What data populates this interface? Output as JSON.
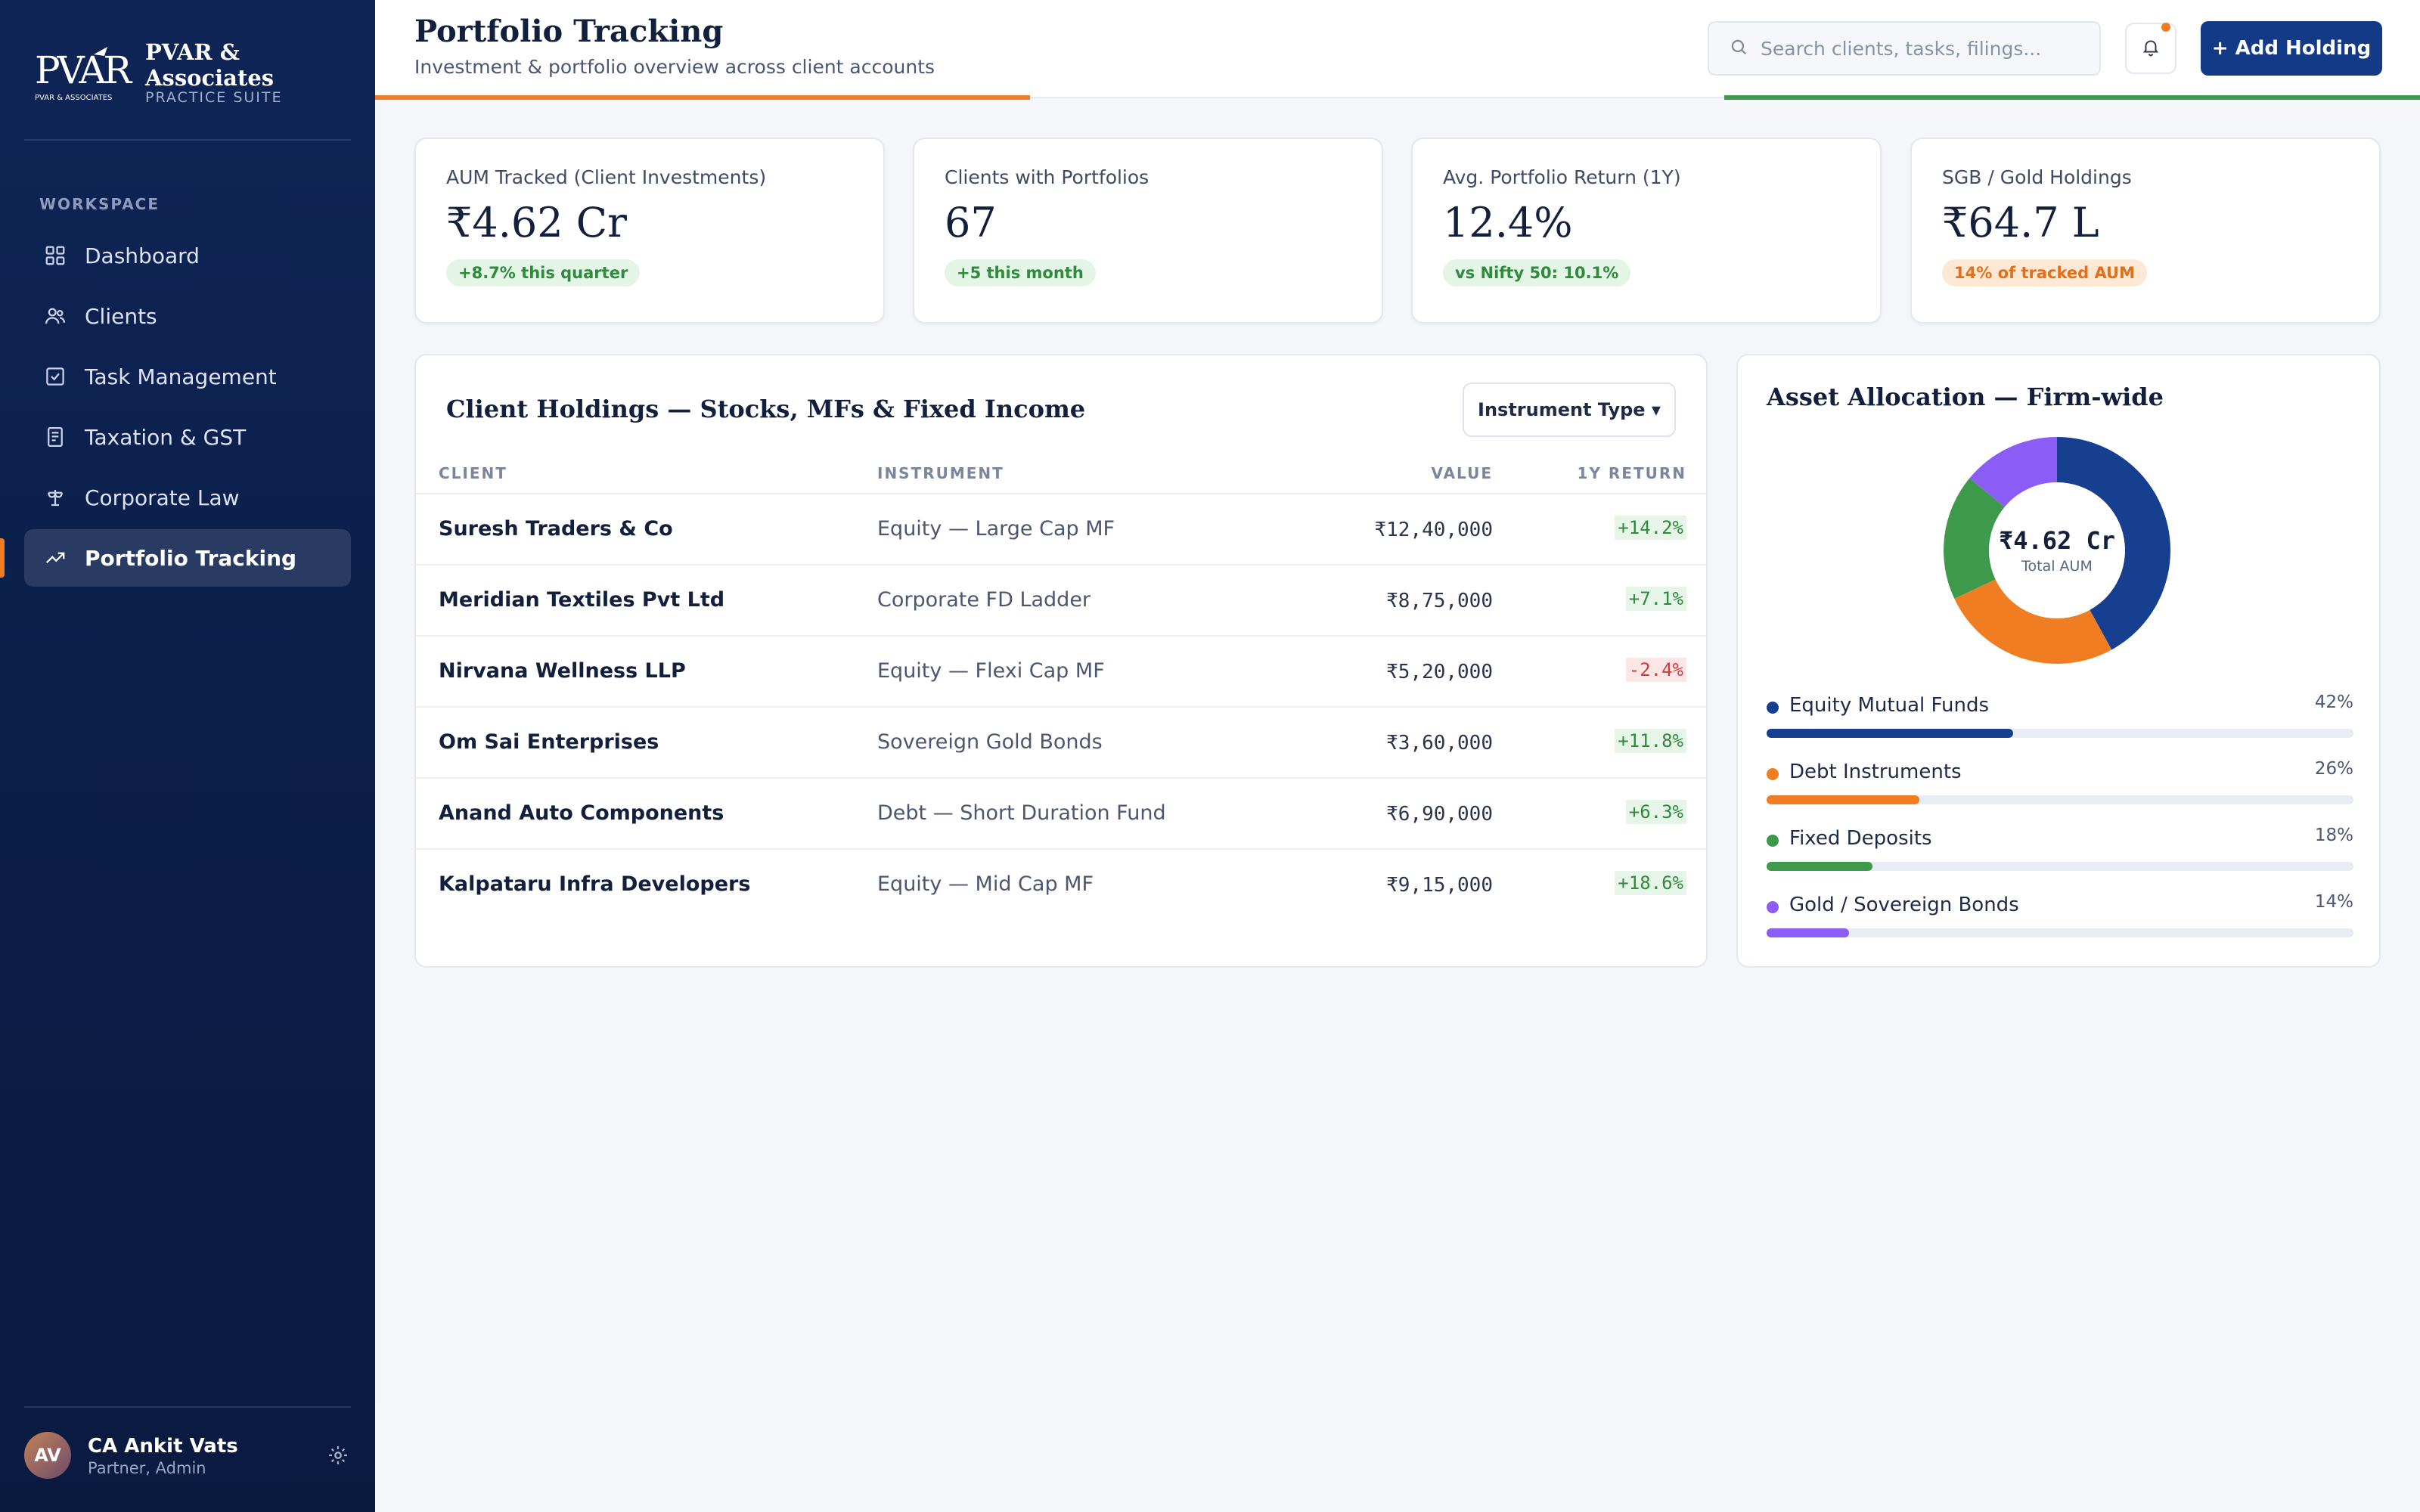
{
  "brand": {
    "logo_text": "PVAR",
    "logo_subtext": "PVAR & ASSOCIATES",
    "name_line1": "PVAR &",
    "name_line2": "Associates",
    "suite": "PRACTICE SUITE"
  },
  "sidebar": {
    "section_label": "WORKSPACE",
    "items": [
      {
        "label": "Dashboard",
        "icon": "grid-icon"
      },
      {
        "label": "Clients",
        "icon": "users-icon"
      },
      {
        "label": "Task Management",
        "icon": "checkbox-icon"
      },
      {
        "label": "Taxation & GST",
        "icon": "receipt-icon"
      },
      {
        "label": "Corporate Law",
        "icon": "scales-icon"
      },
      {
        "label": "Portfolio Tracking",
        "icon": "trend-up-icon",
        "active": true
      }
    ],
    "user": {
      "initials": "AV",
      "name": "CA Ankit Vats",
      "role": "Partner, Admin"
    }
  },
  "header": {
    "title": "Portfolio Tracking",
    "subtitle": "Investment & portfolio overview across client accounts",
    "search_placeholder": "Search clients, tasks, filings...",
    "add_button": "+ Add Holding"
  },
  "stats": [
    {
      "label": "AUM Tracked (Client Investments)",
      "value": "₹4.62 Cr",
      "badge": "+8.7% this quarter",
      "badge_color": "green"
    },
    {
      "label": "Clients with Portfolios",
      "value": "67",
      "badge": "+5 this month",
      "badge_color": "green"
    },
    {
      "label": "Avg. Portfolio Return (1Y)",
      "value": "12.4%",
      "badge": "vs Nifty 50: 10.1%",
      "badge_color": "green"
    },
    {
      "label": "SGB / Gold Holdings",
      "value": "₹64.7 L",
      "badge": "14% of tracked AUM",
      "badge_color": "orange"
    }
  ],
  "holdings": {
    "title": "Client Holdings — Stocks, MFs & Fixed Income",
    "filter_button": "Instrument Type ▾",
    "columns": {
      "client": "CLIENT",
      "instrument": "INSTRUMENT",
      "value": "VALUE",
      "return": "1Y RETURN"
    },
    "rows": [
      {
        "client": "Suresh Traders & Co",
        "instrument": "Equity — Large Cap MF",
        "value": "₹12,40,000",
        "return": "+14.2%",
        "positive": true
      },
      {
        "client": "Meridian Textiles Pvt Ltd",
        "instrument": "Corporate FD Ladder",
        "value": "₹8,75,000",
        "return": "+7.1%",
        "positive": true
      },
      {
        "client": "Nirvana Wellness LLP",
        "instrument": "Equity — Flexi Cap MF",
        "value": "₹5,20,000",
        "return": "-2.4%",
        "positive": false
      },
      {
        "client": "Om Sai Enterprises",
        "instrument": "Sovereign Gold Bonds",
        "value": "₹3,60,000",
        "return": "+11.8%",
        "positive": true
      },
      {
        "client": "Anand Auto Components",
        "instrument": "Debt — Short Duration Fund",
        "value": "₹6,90,000",
        "return": "+6.3%",
        "positive": true
      },
      {
        "client": "Kalpataru Infra Developers",
        "instrument": "Equity — Mid Cap MF",
        "value": "₹9,15,000",
        "return": "+18.6%",
        "positive": true
      }
    ]
  },
  "allocation": {
    "title": "Asset Allocation — Firm-wide",
    "center_value": "₹4.62 Cr",
    "center_label": "Total AUM",
    "segments": [
      {
        "name": "Equity Mutual Funds",
        "pct_label": "42%",
        "value": 42,
        "color": "#173f8f"
      },
      {
        "name": "Debt Instruments",
        "pct_label": "26%",
        "value": 26,
        "color": "#f07d22"
      },
      {
        "name": "Fixed Deposits",
        "pct_label": "18%",
        "value": 18,
        "color": "#3d9a4a"
      },
      {
        "name": "Gold / Sovereign Bonds",
        "pct_label": "14%",
        "value": 14,
        "color": "#8b5cf6"
      }
    ]
  },
  "colors": {
    "sidebar_bg": "#0e2556",
    "accent_orange": "#f07d22",
    "accent_green": "#3d9a4a",
    "primary_button": "#133a86"
  }
}
